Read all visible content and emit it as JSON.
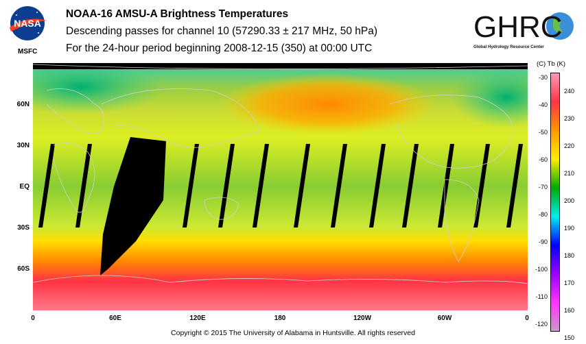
{
  "header": {
    "title": "NOAA-16 AMSU-A Brightness Temperatures",
    "subtitle": "Descending passes for channel 10 (57290.33 ± 217 MHz, 50 hPa)",
    "period": "For the 24-hour period beginning 2008-12-15 (350) at 00:00 UTC"
  },
  "logos": {
    "nasa": "NASA",
    "nasa_sub": "MSFC",
    "ghrc": "GHRC",
    "ghrc_sub": "Global Hydrology Resource Center"
  },
  "map": {
    "lat_labels": [
      "60N",
      "30N",
      "EQ",
      "30S",
      "60S"
    ],
    "lon_labels": [
      "0",
      "60E",
      "120E",
      "180",
      "120W",
      "60W",
      "0"
    ],
    "colors": {
      "no_data": "#000000",
      "coastline": "#cfcfcf"
    }
  },
  "colorbar": {
    "header": "(C)  Tb  (K)",
    "celsius_ticks": [
      "-30",
      "-40",
      "-50",
      "-60",
      "-70",
      "-80",
      "-90",
      "-100",
      "-110",
      "-120"
    ],
    "kelvin_ticks": [
      "240",
      "230",
      "220",
      "210",
      "200",
      "190",
      "180",
      "170",
      "160",
      "150"
    ],
    "stops": [
      "#ff99bb",
      "#ff3344",
      "#ff9900",
      "#ffee00",
      "#00aa00",
      "#00eeee",
      "#0000ff",
      "#9900ff",
      "#ff33ff",
      "#cc99cc"
    ]
  },
  "footer": {
    "copyright": "Copyright © 2015 The University of Alabama in Huntsville.  All rights reserved"
  }
}
